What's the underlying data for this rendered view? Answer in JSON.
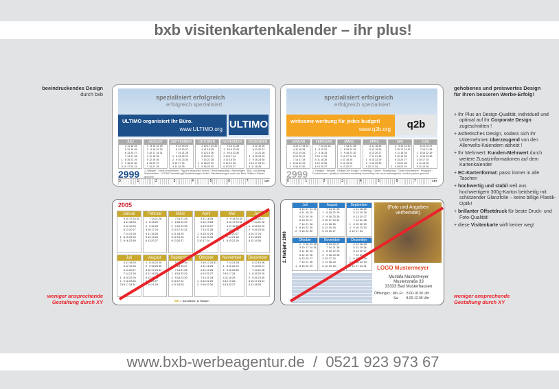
{
  "header": {
    "title": "bxb visitenkartenkalender – ihr plus!"
  },
  "footer": {
    "text": "www.bxb-werbeagentur.de  /  0521 923 973 67"
  },
  "left_note": {
    "line1": "beeindruckendes Design",
    "line2": "durch bxb"
  },
  "bad_note": {
    "line1": "weniger ansprechende",
    "line2": "Gestaltung durch XY"
  },
  "right_panel": {
    "heading1": "gehobenes und preiswertes Design",
    "heading2": "für ihren besseren Werbe-Erfolg!",
    "items": [
      {
        "pre": "Ihr Plus an Design-Qualität, individuell und optimal auf ihr ",
        "bold": "Corporate Design",
        "post": " zugeschnitten !"
      },
      {
        "pre": "ästhetisches Design, sodass sich Ihr Unternehmen ",
        "bold": "überzeugend",
        "post": " von den Allerwelts-Kalendern abhebt !"
      },
      {
        "pre": "Ihr Mehrwert: ",
        "bold": "Kunden-Mehrwert",
        "post": " durch weitere Zusatzinformationen auf dem Kartenkalender"
      },
      {
        "pre": "",
        "bold": "EC-Kartenformat",
        "post": ": passt immer in alle Taschen"
      },
      {
        "pre": "",
        "bold": "hochwertig und stabil",
        "post": " weil aus hochwertigem 300g-Karton beidseitig mit schützender Glanzfolie – keine billige Plastik-Optik!"
      },
      {
        "pre": "",
        "bold": "brillanter Offsetdruck",
        "post": " für beste Druck- und Foto-Qualität!"
      },
      {
        "pre": "diese ",
        "bold": "Visitenkarte",
        "post": " wirft keiner weg!"
      }
    ]
  },
  "cards": [
    {
      "slogan1": "spezialisiert erfolgreich",
      "slogan2": "erfolgreich spezialisiert",
      "headline": "ULTIMO organisiert Ihr Büro.",
      "url": "www.ULTIMO.org",
      "logo": "ULTIMO",
      "accent": "#1d4f8a",
      "year": "2999",
      "months": [
        "JULI",
        "AUGUST",
        "SEPTEMBER",
        "OKTOBER",
        "NOVEMBER",
        "DEZEMBER"
      ],
      "fine": "2. Halbjahr · Mariä Himmelfahrt · Tag der deutschen Einheit · Reformationstag · Allerheiligen · Buß- und Bettag · Weihnachten · ULTIMO Verwaltung/Dienstleistungen GmbH: Dienstleistungen rund ums Büro. Weitere Partner gesucht!"
    },
    {
      "slogan1": "spezialisiert erfolgreich",
      "slogan2": "erfolgreich spezialisiert",
      "headline": "wirksame werbung für jedes budget!",
      "url": "www.q2b.org",
      "logo": "q2b",
      "accent": "#f5a623",
      "year": "2999",
      "months": [
        "JANUAR",
        "FEBRUAR",
        "MÄRZ",
        "APRIL",
        "MAI",
        "JUNI"
      ],
      "fine": "1. Halbjahr · Neujahr · Heilige Drei Könige · Karfreitag · Ostern · Maifeiertag · Christi Himmelfahrt · Pfingsten · Fronleichnam · quality to business marketing+consulting: ihre neue werbeagentur. weitere partner gesucht!"
    }
  ],
  "bad_card1": {
    "year": "2005",
    "months": [
      "Januar",
      "Februar",
      "März",
      "April",
      "Mai",
      "Juni",
      "Juli",
      "August",
      "September",
      "Oktober",
      "November",
      "Dezember"
    ],
    "legend": "= Schulferien in Hessen"
  },
  "bad_card2": {
    "side": "2. Halbjahr 2006",
    "months": [
      "Juli",
      "August",
      "September",
      "Oktober",
      "November",
      "Dezember"
    ],
    "photo_note": "(Foto und Angaben verfremdet)",
    "logo": "LOGO Mustermeyer",
    "name": "Mustafa Mustermeyer",
    "street": "Musterstraße 33",
    "city": "33333 Bad Musterhausen",
    "hours_label": "Öffnungsz.:",
    "hours1": "Mo.-Fr.   8.00-18.30 Uhr",
    "hours2": "Sa.        8.00-12.00 Uhr"
  },
  "ruler": [
    "0",
    "1",
    "2",
    "3",
    "4",
    "5",
    "6",
    "7",
    "cm"
  ]
}
